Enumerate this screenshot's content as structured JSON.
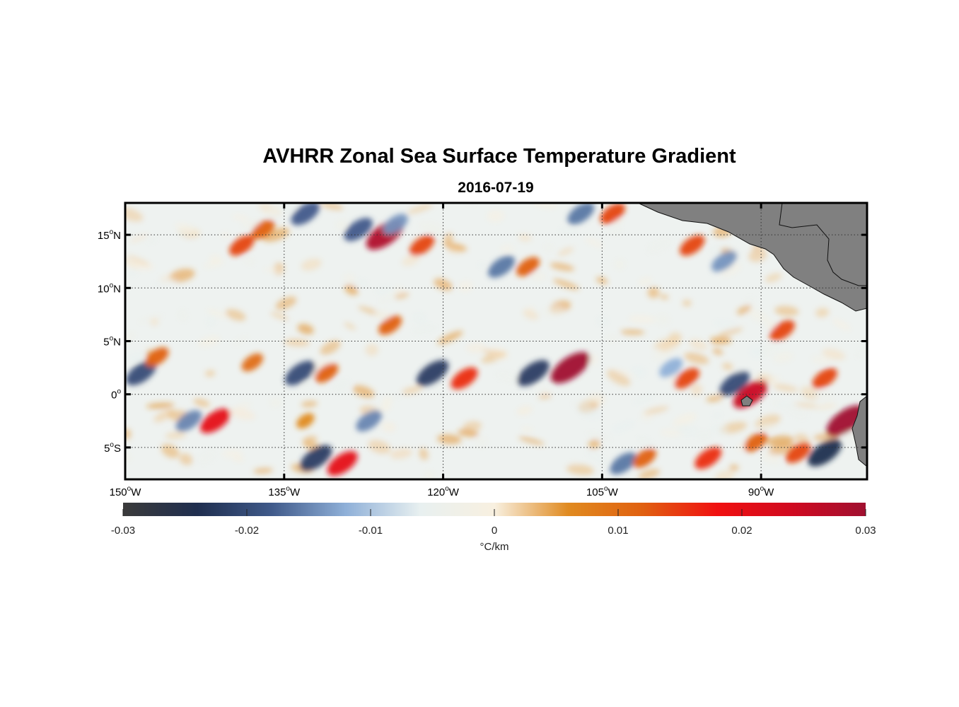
{
  "figure": {
    "title": "AVHRR Zonal Sea Surface Temperature Gradient",
    "subtitle": "2016-07-19"
  },
  "colors": {
    "land": "#808080",
    "frame": "#000000",
    "colormap": [
      "#3b3b3b",
      "#1f2e4f",
      "#405a8a",
      "#8fb0d8",
      "#e8f0f0",
      "#f8f0e0",
      "#e08a20",
      "#e06010",
      "#f01010",
      "#d00a20",
      "#a01030"
    ]
  },
  "chart_data": {
    "type": "heatmap",
    "title": "AVHRR Zonal Sea Surface Temperature Gradient",
    "subtitle": "2016-07-19",
    "xlim": [
      -150,
      -80
    ],
    "ylim": [
      -8,
      18
    ],
    "grid": true,
    "x_ticks": [
      {
        "value": -150,
        "deg": "150",
        "hemi": "W"
      },
      {
        "value": -135,
        "deg": "135",
        "hemi": "W"
      },
      {
        "value": -120,
        "deg": "120",
        "hemi": "W"
      },
      {
        "value": -105,
        "deg": "105",
        "hemi": "W"
      },
      {
        "value": -90,
        "deg": "90",
        "hemi": "W"
      }
    ],
    "y_ticks": [
      {
        "value": 15,
        "deg": "15",
        "hemi": "N"
      },
      {
        "value": 10,
        "deg": "10",
        "hemi": "N"
      },
      {
        "value": 5,
        "deg": "5",
        "hemi": "N"
      },
      {
        "value": 0,
        "deg": "0",
        "hemi": ""
      },
      {
        "value": -5,
        "deg": "5",
        "hemi": "S"
      }
    ],
    "colorbar": {
      "limits": [
        -0.03,
        0.03
      ],
      "ticks": [
        -0.03,
        -0.02,
        -0.01,
        0,
        0.01,
        0.02,
        0.03
      ],
      "tick_labels": [
        "-0.03",
        "-0.02",
        "-0.01",
        "0",
        "0.01",
        "0.02",
        "0.03"
      ],
      "unit_label": "°C/km"
    },
    "features": [
      {
        "lon": -148.5,
        "lat": 2.0,
        "value": -0.02
      },
      {
        "lon": -147.0,
        "lat": 3.5,
        "value": 0.012
      },
      {
        "lon": -144.0,
        "lat": -2.5,
        "value": -0.015
      },
      {
        "lon": -138.0,
        "lat": 3.0,
        "value": 0.01
      },
      {
        "lon": -141.5,
        "lat": -2.5,
        "value": 0.02
      },
      {
        "lon": -137.0,
        "lat": 15.5,
        "value": 0.012
      },
      {
        "lon": -139.0,
        "lat": 14.0,
        "value": 0.014
      },
      {
        "lon": -133.5,
        "lat": 2.0,
        "value": -0.02
      },
      {
        "lon": -131.0,
        "lat": 2.0,
        "value": 0.012
      },
      {
        "lon": -133.0,
        "lat": 17.0,
        "value": -0.018
      },
      {
        "lon": -132.0,
        "lat": -6.0,
        "value": -0.022
      },
      {
        "lon": -129.5,
        "lat": -6.5,
        "value": 0.02
      },
      {
        "lon": -133.0,
        "lat": -2.5,
        "value": 0.006
      },
      {
        "lon": -127.0,
        "lat": -2.5,
        "value": -0.015
      },
      {
        "lon": -128.0,
        "lat": 15.5,
        "value": -0.018
      },
      {
        "lon": -125.5,
        "lat": 15.0,
        "value": 0.028
      },
      {
        "lon": -124.5,
        "lat": 16.0,
        "value": -0.014
      },
      {
        "lon": -122.0,
        "lat": 14.0,
        "value": 0.014
      },
      {
        "lon": -125.0,
        "lat": 6.5,
        "value": 0.012
      },
      {
        "lon": -121.0,
        "lat": 2.0,
        "value": -0.022
      },
      {
        "lon": -118.0,
        "lat": 1.5,
        "value": 0.016
      },
      {
        "lon": -111.5,
        "lat": 2.0,
        "value": -0.022
      },
      {
        "lon": -108.0,
        "lat": 2.5,
        "value": 0.03
      },
      {
        "lon": -114.5,
        "lat": 12.0,
        "value": -0.016
      },
      {
        "lon": -112.0,
        "lat": 12.0,
        "value": 0.012
      },
      {
        "lon": -107.0,
        "lat": 17.0,
        "value": -0.016
      },
      {
        "lon": -104.0,
        "lat": 17.0,
        "value": 0.014
      },
      {
        "lon": -103.0,
        "lat": -6.5,
        "value": -0.016
      },
      {
        "lon": -101.0,
        "lat": -6.0,
        "value": 0.012
      },
      {
        "lon": -97.0,
        "lat": 1.5,
        "value": 0.014
      },
      {
        "lon": -98.5,
        "lat": 2.5,
        "value": -0.012
      },
      {
        "lon": -92.5,
        "lat": 1.0,
        "value": -0.02
      },
      {
        "lon": -91.0,
        "lat": 0.0,
        "value": 0.025
      },
      {
        "lon": -95.0,
        "lat": -6.0,
        "value": 0.016
      },
      {
        "lon": -96.5,
        "lat": 14.0,
        "value": 0.014
      },
      {
        "lon": -93.5,
        "lat": 12.5,
        "value": -0.014
      },
      {
        "lon": -88.0,
        "lat": 6.0,
        "value": 0.014
      },
      {
        "lon": -84.0,
        "lat": 1.5,
        "value": 0.014
      },
      {
        "lon": -82.0,
        "lat": -2.5,
        "value": 0.03
      },
      {
        "lon": -84.0,
        "lat": -5.5,
        "value": -0.024
      },
      {
        "lon": -86.5,
        "lat": -5.5,
        "value": 0.014
      },
      {
        "lon": -90.5,
        "lat": -4.5,
        "value": 0.012
      }
    ]
  }
}
